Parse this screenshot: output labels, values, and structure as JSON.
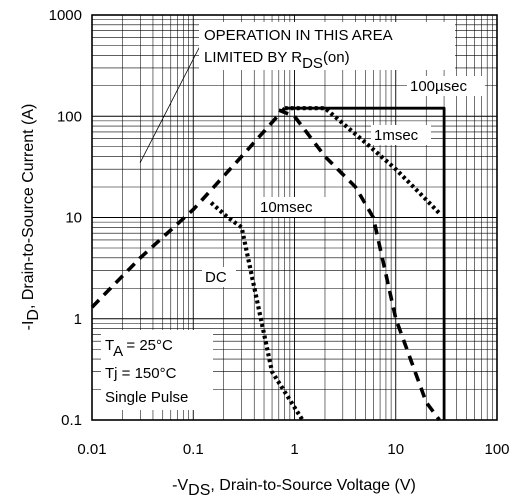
{
  "chart_data": {
    "type": "line",
    "x_scale": "log",
    "y_scale": "log",
    "xlim": [
      0.01,
      100
    ],
    "ylim": [
      0.1,
      1000
    ],
    "grid": "on (major and minor log gridlines)",
    "x_ticks": [
      "0.01",
      "0.1",
      "1",
      "10",
      "100"
    ],
    "y_ticks": [
      "0.1",
      "1",
      "10",
      "100",
      "1000"
    ],
    "xlabel": {
      "prefix": "-V",
      "sub": "DS",
      "suffix": ", Drain-to-Source Voltage (V)"
    },
    "ylabel": {
      "prefix": "-I",
      "sub": "D",
      "suffix": ", Drain-to-Source Current (A)"
    },
    "annotations": {
      "limit_line1": "OPERATION IN THIS AREA",
      "limit_line2_prefix": "LIMITED BY R",
      "limit_line2_sub": "DS",
      "limit_line2_suffix": "(on)",
      "cond_ta_prefix": "T",
      "cond_ta_sub": "A",
      "cond_ta_suffix": " = 25°C",
      "cond_tj": "Tj = 150°C",
      "cond_pulse": "Single Pulse"
    },
    "series": [
      {
        "name": "100µsec",
        "style": "solid",
        "x": [
          0.8,
          30,
          30
        ],
        "y": [
          120,
          120,
          0.1
        ]
      },
      {
        "name": "RDS(on) limit",
        "style": "dashed",
        "x": [
          0.01,
          0.03,
          0.1,
          0.3,
          0.8
        ],
        "y": [
          1.3,
          4,
          12,
          40,
          120
        ]
      },
      {
        "name": "1msec",
        "style": "dotted",
        "x": [
          0.8,
          2,
          5,
          10,
          20,
          27
        ],
        "y": [
          120,
          120,
          55,
          30,
          15,
          11
        ]
      },
      {
        "name": "10msec",
        "style": "dashed",
        "x": [
          0.7,
          1,
          2,
          4,
          6,
          10,
          20,
          27
        ],
        "y": [
          115,
          100,
          40,
          20,
          10,
          1,
          0.15,
          0.1
        ]
      },
      {
        "name": "DC",
        "style": "dotted",
        "x": [
          0.15,
          0.22,
          0.3,
          0.6,
          1.2
        ],
        "y": [
          14,
          10,
          8,
          0.3,
          0.1
        ]
      }
    ]
  }
}
